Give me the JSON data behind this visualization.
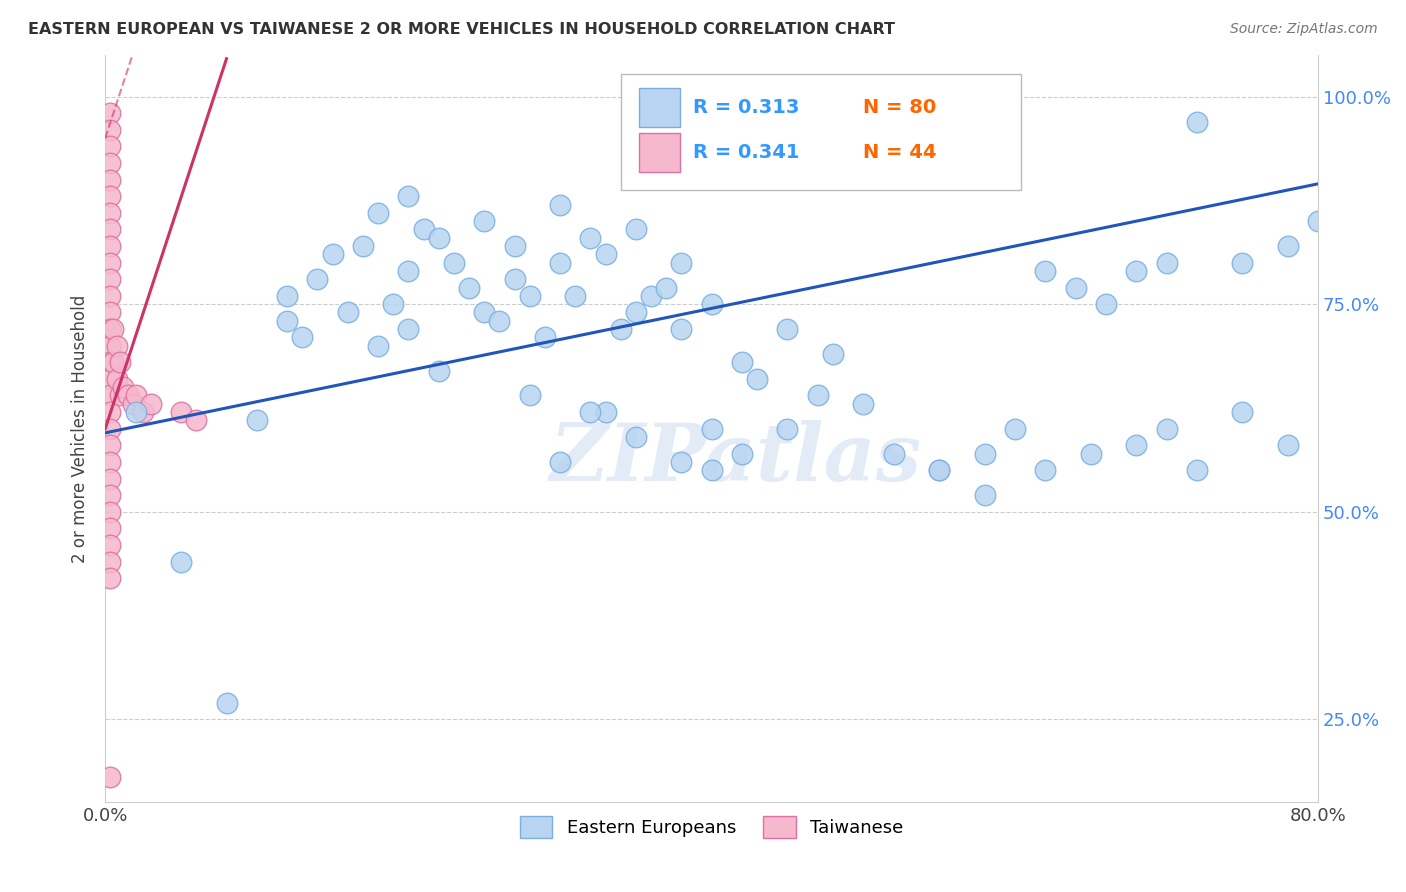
{
  "title": "EASTERN EUROPEAN VS TAIWANESE 2 OR MORE VEHICLES IN HOUSEHOLD CORRELATION CHART",
  "source": "Source: ZipAtlas.com",
  "ylabel": "2 or more Vehicles in Household",
  "xlim": [
    0.0,
    0.8
  ],
  "ylim": [
    0.15,
    1.05
  ],
  "ytick_values": [
    0.25,
    0.5,
    0.75,
    1.0
  ],
  "ytick_labels": [
    "25.0%",
    "50.0%",
    "75.0%",
    "100.0%"
  ],
  "xtick_values": [
    0.0,
    0.1,
    0.2,
    0.3,
    0.4,
    0.5,
    0.6,
    0.7,
    0.8
  ],
  "xtick_labels": [
    "0.0%",
    "",
    "",
    "",
    "",
    "",
    "",
    "",
    "80.0%"
  ],
  "blue_R": "0.313",
  "blue_N": "80",
  "pink_R": "0.341",
  "pink_N": "44",
  "blue_color": "#b8d4f0",
  "blue_edge": "#7ab0e0",
  "pink_color": "#f5b8cc",
  "pink_edge": "#e070a0",
  "blue_line_color": "#2255bb",
  "pink_line_color": "#cc3366",
  "watermark": "ZIPatlas",
  "blue_points_x": [
    0.02,
    0.05,
    0.08,
    0.1,
    0.12,
    0.12,
    0.13,
    0.14,
    0.15,
    0.16,
    0.17,
    0.18,
    0.18,
    0.19,
    0.2,
    0.2,
    0.2,
    0.21,
    0.22,
    0.22,
    0.23,
    0.24,
    0.25,
    0.25,
    0.26,
    0.27,
    0.27,
    0.28,
    0.28,
    0.29,
    0.3,
    0.3,
    0.31,
    0.32,
    0.33,
    0.33,
    0.34,
    0.35,
    0.35,
    0.36,
    0.37,
    0.38,
    0.38,
    0.4,
    0.4,
    0.42,
    0.43,
    0.45,
    0.47,
    0.48,
    0.3,
    0.32,
    0.35,
    0.38,
    0.4,
    0.42,
    0.45,
    0.5,
    0.52,
    0.55,
    0.58,
    0.6,
    0.62,
    0.65,
    0.68,
    0.7,
    0.72,
    0.75,
    0.78,
    0.72,
    0.55,
    0.58,
    0.62,
    0.64,
    0.66,
    0.68,
    0.7,
    0.75,
    0.78,
    0.8
  ],
  "blue_points_y": [
    0.62,
    0.44,
    0.27,
    0.61,
    0.76,
    0.73,
    0.71,
    0.78,
    0.81,
    0.74,
    0.82,
    0.86,
    0.7,
    0.75,
    0.88,
    0.79,
    0.72,
    0.84,
    0.83,
    0.67,
    0.8,
    0.77,
    0.85,
    0.74,
    0.73,
    0.82,
    0.78,
    0.76,
    0.64,
    0.71,
    0.87,
    0.8,
    0.76,
    0.83,
    0.81,
    0.62,
    0.72,
    0.84,
    0.74,
    0.76,
    0.77,
    0.8,
    0.72,
    0.75,
    0.6,
    0.68,
    0.66,
    0.72,
    0.64,
    0.69,
    0.56,
    0.62,
    0.59,
    0.56,
    0.55,
    0.57,
    0.6,
    0.63,
    0.57,
    0.55,
    0.52,
    0.6,
    0.55,
    0.57,
    0.58,
    0.6,
    0.55,
    0.62,
    0.58,
    0.97,
    0.55,
    0.57,
    0.79,
    0.77,
    0.75,
    0.79,
    0.8,
    0.8,
    0.82,
    0.85
  ],
  "pink_points_x": [
    0.003,
    0.003,
    0.003,
    0.003,
    0.003,
    0.003,
    0.003,
    0.003,
    0.003,
    0.003,
    0.003,
    0.003,
    0.003,
    0.003,
    0.003,
    0.003,
    0.003,
    0.003,
    0.003,
    0.003,
    0.003,
    0.003,
    0.003,
    0.003,
    0.003,
    0.003,
    0.003,
    0.003,
    0.003,
    0.003,
    0.005,
    0.005,
    0.008,
    0.008,
    0.01,
    0.01,
    0.012,
    0.015,
    0.018,
    0.02,
    0.025,
    0.03,
    0.05,
    0.06
  ],
  "pink_points_y": [
    0.98,
    0.96,
    0.94,
    0.92,
    0.9,
    0.88,
    0.86,
    0.84,
    0.82,
    0.8,
    0.78,
    0.76,
    0.74,
    0.72,
    0.7,
    0.68,
    0.66,
    0.64,
    0.62,
    0.6,
    0.58,
    0.56,
    0.54,
    0.52,
    0.5,
    0.48,
    0.46,
    0.44,
    0.42,
    0.18,
    0.72,
    0.68,
    0.7,
    0.66,
    0.68,
    0.64,
    0.65,
    0.64,
    0.63,
    0.64,
    0.62,
    0.63,
    0.62,
    0.61
  ]
}
